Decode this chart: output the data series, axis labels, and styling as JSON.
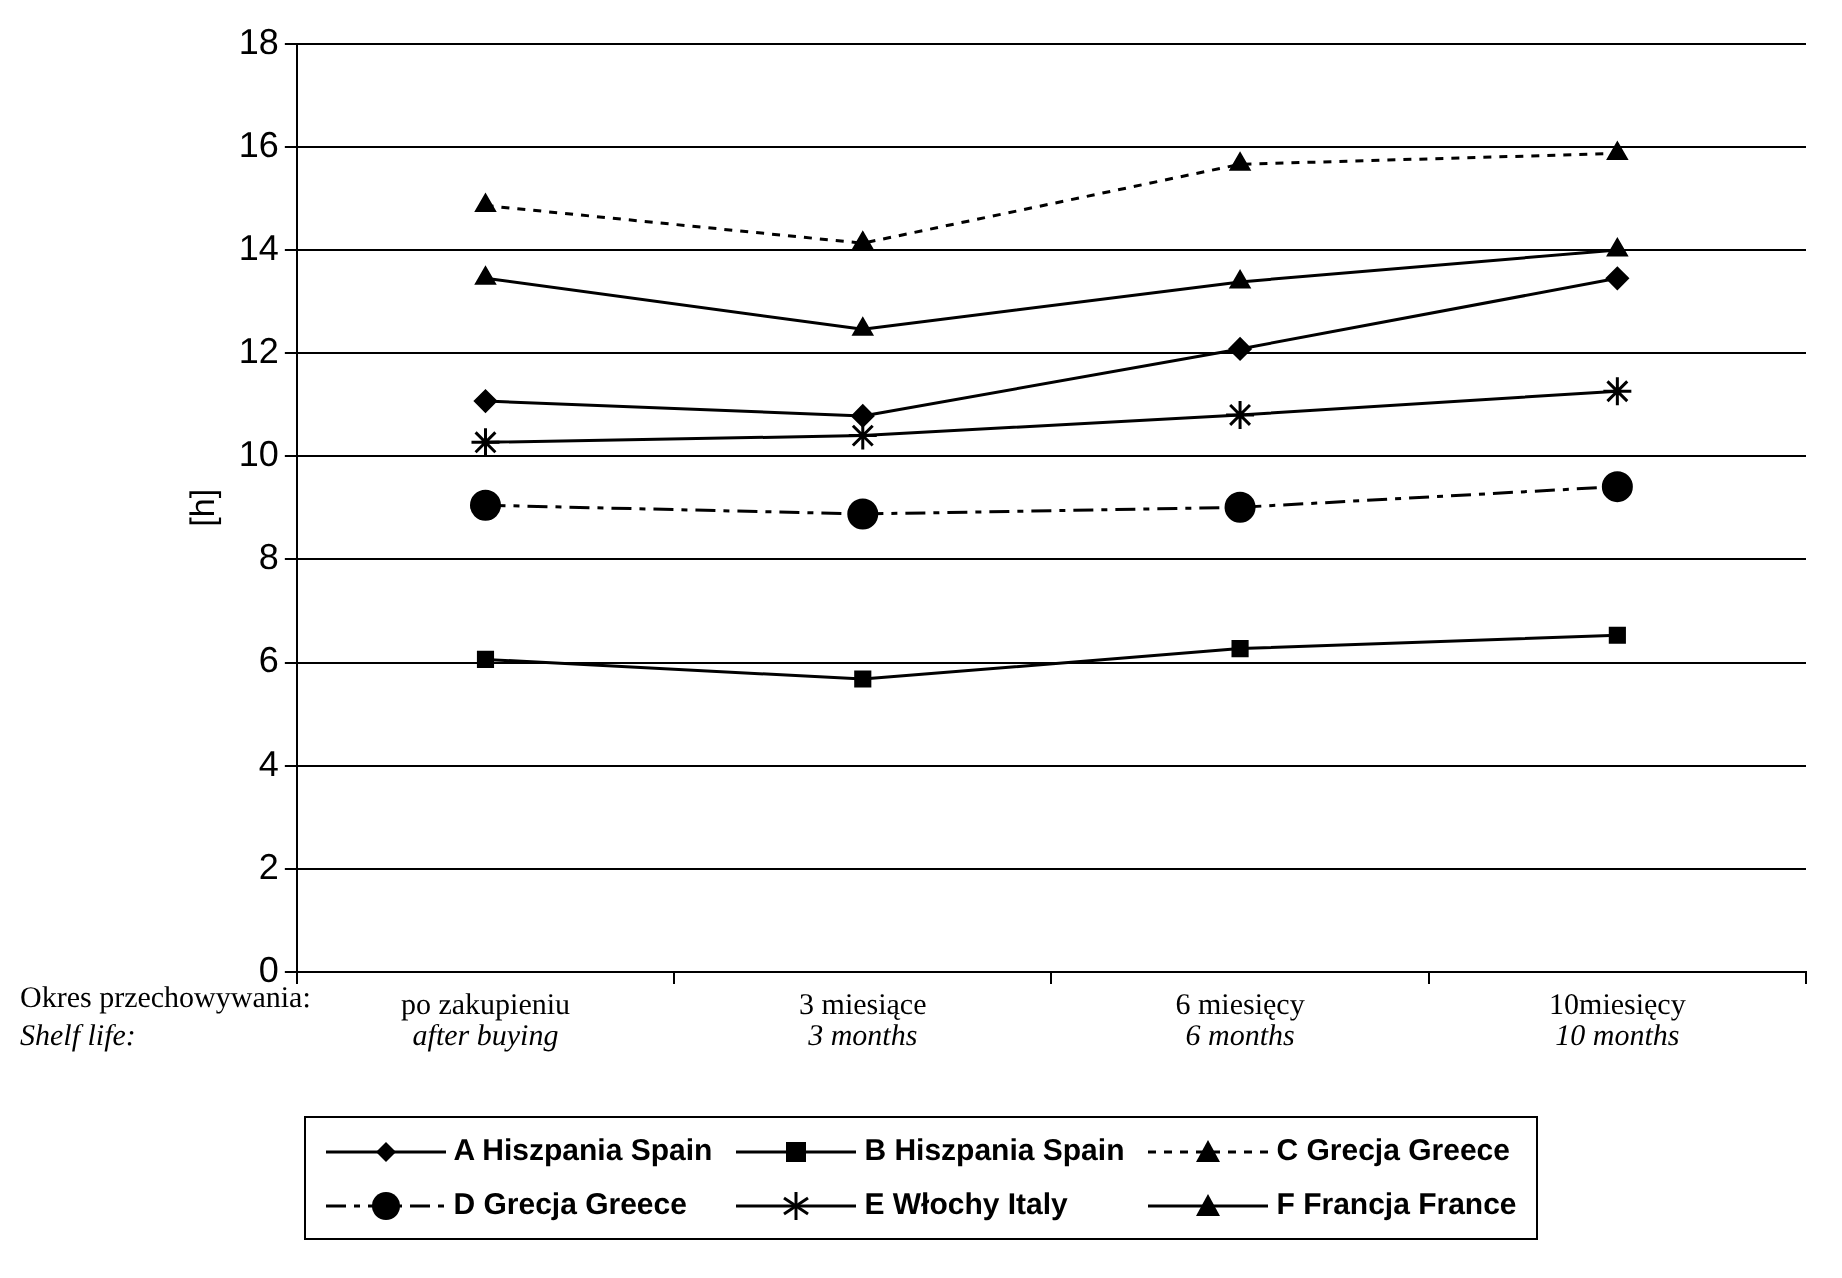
{
  "chart_data": {
    "type": "line",
    "ylabel": "[h]",
    "categories": [
      "po zakupieniu",
      "3 miesiące",
      "6 miesięcy",
      "10miesięcy"
    ],
    "annotations": [
      "Okres przechowywania:",
      "Shelf life:",
      "after buying",
      "3 months",
      "6 months",
      "10 months"
    ],
    "series": [
      {
        "name": "A Hiszpania  Spain",
        "color": "#000000",
        "marker": "diamond",
        "line_style": "solid",
        "values": [
          11.07,
          10.78,
          12.08,
          13.45
        ]
      },
      {
        "name": "B Hiszpania  Spain",
        "color": "#000000",
        "marker": "square",
        "line_style": "solid",
        "values": [
          6.06,
          5.68,
          6.27,
          6.53
        ]
      },
      {
        "name": "C Grecja  Greece",
        "color": "#000000",
        "marker": "triangle",
        "line_style": "dotted",
        "values": [
          14.86,
          14.13,
          15.66,
          15.87
        ]
      },
      {
        "name": "D Grecja  Greece",
        "color": "#000000",
        "marker": "circle",
        "line_style": "dashed",
        "values": [
          9.05,
          8.88,
          9.01,
          9.41
        ]
      },
      {
        "name": "E Włochy Italy",
        "color": "#000000",
        "marker": "cross",
        "line_style": "solid",
        "values": [
          10.27,
          10.4,
          10.8,
          11.26
        ]
      },
      {
        "name": "F Francja France",
        "color": "#000000",
        "marker": "triangle",
        "line_style": "solid",
        "values": [
          13.45,
          12.46,
          13.38,
          14.0
        ]
      }
    ],
    "ylim": [
      0,
      18
    ],
    "yticks": [
      0,
      2,
      4,
      6,
      8,
      10,
      12,
      14,
      16,
      18
    ],
    "grid": "y",
    "legend": "bottom"
  }
}
